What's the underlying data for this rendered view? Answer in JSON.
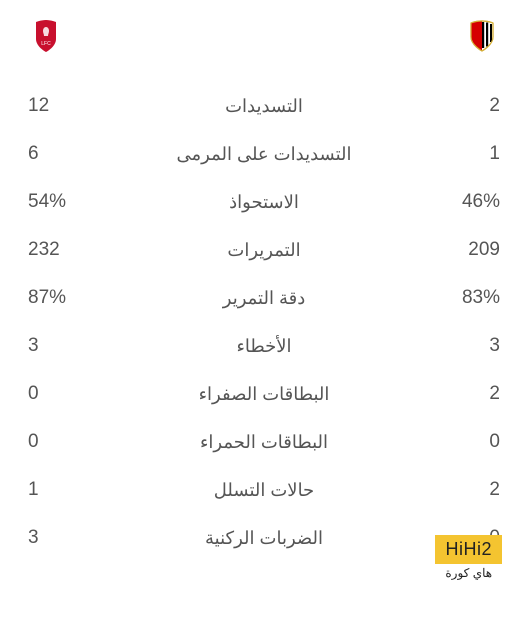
{
  "teams": {
    "home": {
      "name": "AC Milan",
      "crest_colors": {
        "left": "#d50000",
        "right": "#000000",
        "outline": "#d4af37"
      }
    },
    "away": {
      "name": "Liverpool",
      "crest_color": "#c8102e"
    }
  },
  "stats": [
    {
      "label": "التسديدات",
      "home": "2",
      "away": "12"
    },
    {
      "label": "التسديدات على المرمى",
      "home": "1",
      "away": "6"
    },
    {
      "label": "الاستحواذ",
      "home": "46%",
      "away": "54%"
    },
    {
      "label": "التمريرات",
      "home": "209",
      "away": "232"
    },
    {
      "label": "دقة التمرير",
      "home": "83%",
      "away": "87%"
    },
    {
      "label": "الأخطاء",
      "home": "3",
      "away": "3"
    },
    {
      "label": "البطاقات الصفراء",
      "home": "2",
      "away": "0"
    },
    {
      "label": "البطاقات الحمراء",
      "home": "0",
      "away": "0"
    },
    {
      "label": "حالات التسلل",
      "home": "2",
      "away": "1"
    },
    {
      "label": "الضربات الركنية",
      "home": "0",
      "away": "3"
    }
  ],
  "watermark": {
    "main": "HiHi2",
    "sub": "هاي كورة"
  },
  "colors": {
    "text": "#555555",
    "background": "#ffffff",
    "watermark_bg": "#f4c430",
    "watermark_text": "#222222"
  }
}
